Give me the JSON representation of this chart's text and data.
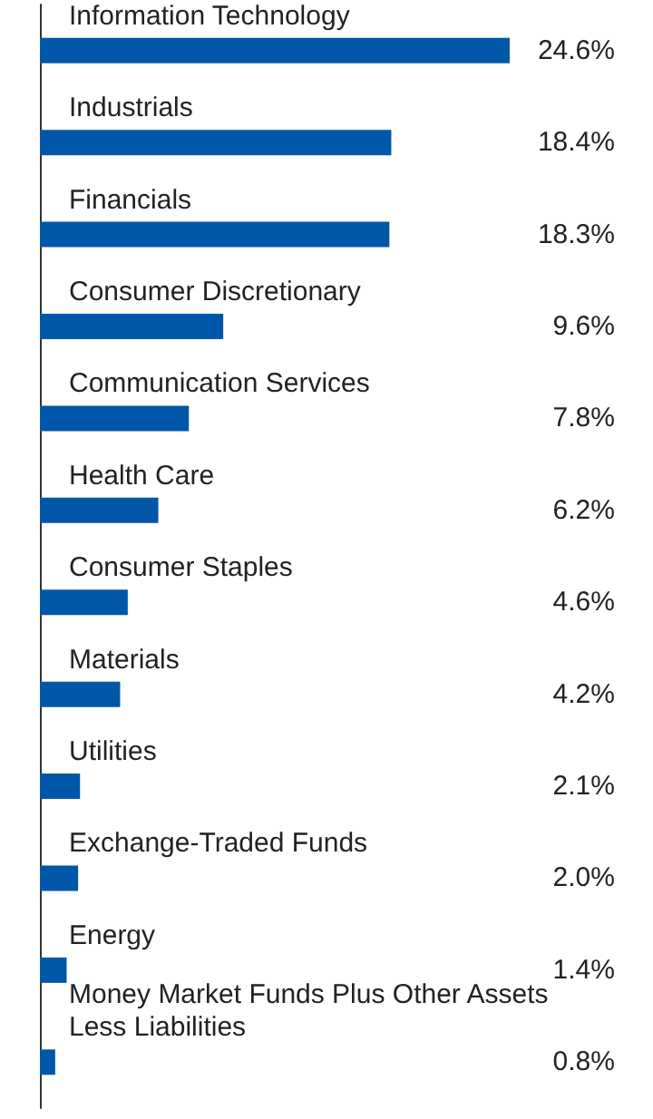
{
  "chart_data": {
    "type": "bar",
    "orientation": "horizontal",
    "categories": [
      "Information Technology",
      "Industrials",
      "Financials",
      "Consumer Discretionary",
      "Communication Services",
      "Health Care",
      "Consumer Staples",
      "Materials",
      "Utilities",
      "Exchange-Traded Funds",
      "Energy",
      "Money Market Funds Plus Other Assets Less Liabilities"
    ],
    "values": [
      24.6,
      18.4,
      18.3,
      9.6,
      7.8,
      6.2,
      4.6,
      4.2,
      2.1,
      2.0,
      1.4,
      0.8
    ],
    "value_labels": [
      "24.6%",
      "18.4%",
      "18.3%",
      "9.6%",
      "7.8%",
      "6.2%",
      "4.6%",
      "4.2%",
      "2.1%",
      "2.0%",
      "1.4%",
      "0.8%"
    ],
    "color": "#0057a8",
    "grid": false
  }
}
